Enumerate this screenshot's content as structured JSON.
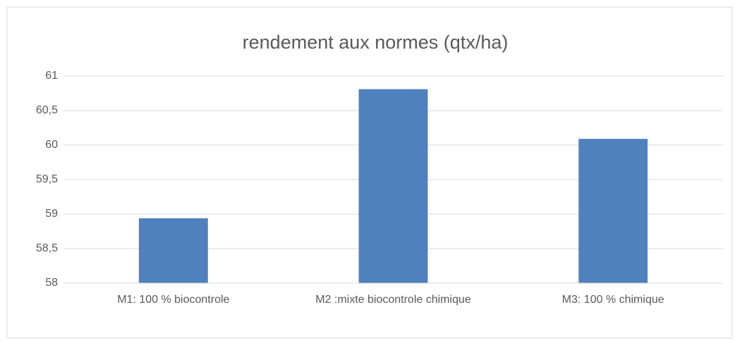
{
  "chart_data": {
    "type": "bar",
    "title": "rendement aux normes (qtx/ha)",
    "categories": [
      "M1: 100 % biocontrole",
      "M2 :mixte biocontrole chimique",
      "M3: 100 % chimique"
    ],
    "values": [
      58.94,
      60.81,
      60.09
    ],
    "color": "#4f81bd",
    "ylim": [
      58,
      61
    ],
    "yticks": [
      58,
      {
        "value": 58.5,
        "label": "58,5"
      },
      59,
      {
        "value": 59.5,
        "label": "59,5"
      },
      60,
      {
        "value": 60.5,
        "label": "60,5"
      },
      61
    ],
    "grid": true
  }
}
